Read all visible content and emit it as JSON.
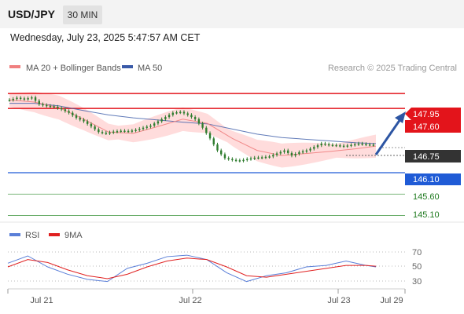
{
  "header": {
    "symbol": "USD/JPY",
    "timeframe": "30 MIN",
    "datetime": "Wednesday, July 23, 2025 5:47:57 AM CET"
  },
  "legend": {
    "ma20_bb": "MA 20 + Bollinger Bands",
    "ma50": "MA 50",
    "credit": "Research © 2025 Trading Central",
    "rsi": "RSI",
    "ma9": "9MA"
  },
  "colors": {
    "ma20": "#f08080",
    "bb_fill": "#ffd6d6",
    "ma50": "#3a5aa8",
    "resistance": "#e3141b",
    "pivot": "#1f5bd6",
    "support": "#2a8a2a",
    "candle": "#2f7d2f",
    "arrow": "#2d55a3",
    "rsi": "#5a7fd8",
    "rsi_ma": "#e02020"
  },
  "chart_data": [
    {
      "type": "line",
      "subtype": "candlestick",
      "title": "USD/JPY 30 MIN",
      "x_ticks": [
        "Jul 21",
        "Jul 22",
        "Jul 23",
        "Jul 29"
      ],
      "ylim": [
        145.0,
        148.3
      ],
      "series": [
        {
          "name": "Price",
          "x": [
            0,
            3,
            6,
            9,
            12,
            15,
            18,
            21,
            24,
            27,
            30,
            33,
            36,
            39,
            42,
            45,
            48,
            51,
            54,
            57,
            60,
            63,
            66,
            69,
            72,
            75,
            78,
            81,
            84,
            87,
            90,
            93,
            96,
            99,
            102,
            105,
            108,
            111,
            114,
            117,
            120,
            123,
            126,
            129,
            132,
            135,
            138,
            141,
            144,
            147,
            148
          ],
          "values": [
            147.8,
            147.85,
            147.82,
            147.86,
            147.7,
            147.66,
            147.64,
            147.58,
            147.5,
            147.38,
            147.3,
            147.18,
            147.05,
            147.02,
            147.06,
            147.08,
            147.07,
            147.1,
            147.15,
            147.2,
            147.3,
            147.4,
            147.5,
            147.52,
            147.45,
            147.35,
            147.15,
            146.9,
            146.62,
            146.44,
            146.4,
            146.38,
            146.42,
            146.45,
            146.46,
            146.48,
            146.55,
            146.62,
            146.5,
            146.58,
            146.62,
            146.7,
            146.78,
            146.75,
            146.74,
            146.72,
            146.75,
            146.78,
            146.76,
            146.75,
            146.75
          ]
        },
        {
          "name": "MA 20",
          "x": [
            0,
            10,
            20,
            30,
            40,
            50,
            60,
            70,
            80,
            90,
            100,
            110,
            120,
            130,
            140,
            148
          ],
          "values": [
            147.8,
            147.75,
            147.62,
            147.35,
            147.05,
            147.02,
            147.18,
            147.35,
            147.25,
            146.9,
            146.62,
            146.5,
            146.55,
            146.6,
            146.66,
            146.72
          ]
        },
        {
          "name": "MA 50",
          "x": [
            0,
            10,
            20,
            30,
            40,
            50,
            60,
            70,
            80,
            90,
            100,
            110,
            120,
            130,
            140,
            148
          ],
          "values": [
            147.72,
            147.72,
            147.66,
            147.55,
            147.45,
            147.38,
            147.33,
            147.28,
            147.24,
            147.12,
            147.0,
            146.92,
            146.88,
            146.84,
            146.8,
            146.78
          ]
        }
      ],
      "levels": {
        "resistance": [
          147.95,
          147.6
        ],
        "pivot": 146.1,
        "support": [
          145.6,
          145.1
        ],
        "current": 146.75,
        "target": 147.95
      },
      "price_labels": [
        "147.95",
        "147.60",
        "146.75",
        "146.10",
        "145.60",
        "145.10"
      ]
    },
    {
      "type": "line",
      "title": "RSI",
      "ylim": [
        20,
        80
      ],
      "y_ticks": [
        "70",
        "50",
        "30"
      ],
      "series": [
        {
          "name": "RSI",
          "x": [
            0,
            8,
            16,
            24,
            32,
            40,
            48,
            56,
            64,
            72,
            80,
            88,
            96,
            104,
            112,
            120,
            128,
            136,
            144,
            148
          ],
          "values": [
            55,
            65,
            50,
            40,
            33,
            30,
            48,
            55,
            64,
            66,
            60,
            42,
            30,
            38,
            42,
            50,
            52,
            58,
            52,
            50
          ]
        },
        {
          "name": "9MA",
          "x": [
            0,
            8,
            16,
            24,
            32,
            40,
            48,
            56,
            64,
            72,
            80,
            88,
            96,
            104,
            112,
            120,
            128,
            136,
            144,
            148
          ],
          "values": [
            50,
            60,
            56,
            46,
            38,
            34,
            40,
            50,
            58,
            62,
            60,
            50,
            38,
            36,
            40,
            44,
            48,
            52,
            52,
            51
          ]
        }
      ]
    }
  ]
}
